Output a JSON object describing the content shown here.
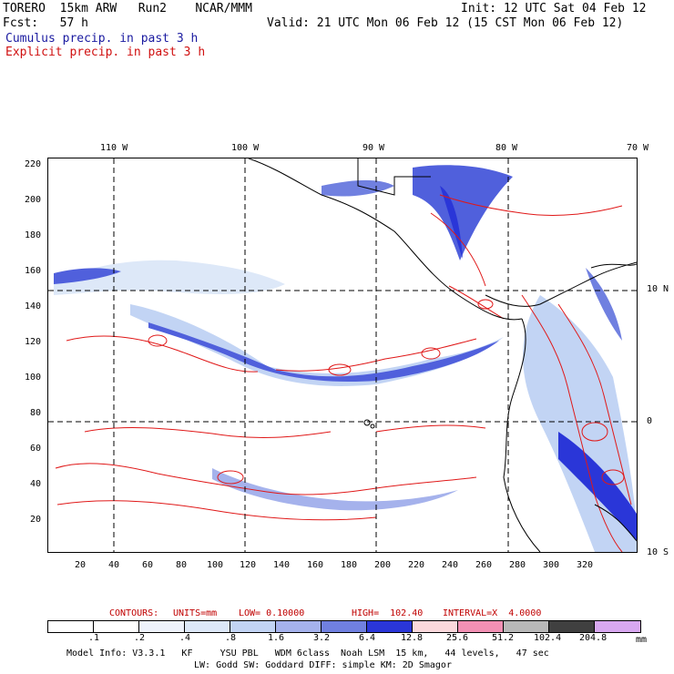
{
  "header": {
    "model": "TORERO  15km ARW   Run2    NCAR/MMM",
    "init": "Init: 12 UTC Sat 04 Feb 12",
    "fcst": "Fcst:   57 h",
    "valid": "Valid: 21 UTC Mon 06 Feb 12 (15 CST Mon 06 Feb 12)",
    "cumulus": "Cumulus precip. in past 3 h",
    "explicit": "Explicit precip. in past 3 h"
  },
  "axes": {
    "top_lon": [
      "110 W",
      "100 W",
      "90 W",
      "80 W",
      "70 W"
    ],
    "right_lat": [
      "10 N",
      "0",
      "10 S"
    ],
    "left_y": [
      "220",
      "200",
      "180",
      "160",
      "140",
      "120",
      "100",
      "80",
      "60",
      "40",
      "20"
    ],
    "bottom_x": [
      "20",
      "40",
      "60",
      "80",
      "100",
      "120",
      "140",
      "160",
      "180",
      "200",
      "220",
      "240",
      "260",
      "280",
      "300",
      "320"
    ]
  },
  "contours": {
    "label": "CONTOURS:",
    "units": "UNITS=mm",
    "low": "LOW= 0.10000",
    "high": "HIGH=  102.40",
    "interval": "INTERVAL=X  4.0000"
  },
  "legend": {
    "values": [
      ".1",
      ".2",
      ".4",
      ".8",
      "1.6",
      "3.2",
      "6.4",
      "12.8",
      "25.6",
      "51.2",
      "102.4",
      "204.8"
    ],
    "colors": [
      "#ffffff",
      "#ffffff",
      "#eef2fb",
      "#dde8f8",
      "#c2d4f4",
      "#a5b2ec",
      "#7080e0",
      "#2a36d8",
      "#fbd8dc",
      "#f290b4",
      "#b8b8b8",
      "#404040",
      "#d8a8f0"
    ],
    "unit": "mm"
  },
  "footer": {
    "line1": "Model Info: V3.3.1   KF     YSU PBL   WDM 6class  Noah LSM  15 km,   44 levels,   47 sec",
    "line2": "LW: Godd SW: Goddard DIFF: simple KM: 2D Smagor"
  }
}
